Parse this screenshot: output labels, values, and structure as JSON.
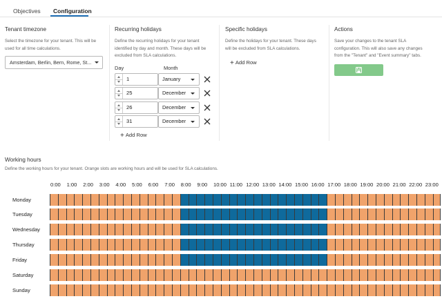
{
  "tabs": [
    {
      "label": "Objectives",
      "active": false
    },
    {
      "label": "Configuration",
      "active": true
    }
  ],
  "timezone": {
    "title": "Tenant timezone",
    "description": [
      "Select the timezone for your tenant. This will be",
      "used for all time calculations."
    ],
    "selected": "Amsterdam, Berlin, Bern, Rome, St..."
  },
  "recurring": {
    "title": "Recurring holidays",
    "description": [
      "Define the recurring holidays for your tenant",
      "identified by day and month. These days will be",
      "excluded from SLA calculations."
    ],
    "day_header": "Day",
    "month_header": "Month",
    "rows": [
      {
        "day": "1",
        "month": "January"
      },
      {
        "day": "25",
        "month": "December"
      },
      {
        "day": "26",
        "month": "December"
      },
      {
        "day": "31",
        "month": "December"
      }
    ],
    "add_row": "Add Row"
  },
  "specific": {
    "title": "Specific holidays",
    "description": [
      "Define the holidays for your tenant. These days",
      "will be excluded from SLA calculations."
    ],
    "add_row": "Add Row"
  },
  "actions": {
    "title": "Actions",
    "description": [
      "Save your changes to the tenant SLA",
      "configuration. This will also save any changes",
      "from the \"Tenant\" and \"Event summary\" tabs."
    ]
  },
  "working_hours": {
    "title": "Working hours",
    "description": "Define the working hours for your tenant. Orange slots are working hours and will be used for SLA calculations.",
    "hours": [
      "0:00",
      "1:00",
      "2:00",
      "3:00",
      "4:00",
      "5:00",
      "6:00",
      "7:00",
      "8:00",
      "9:00",
      "10:00",
      "11:00",
      "12:00",
      "13:00",
      "14:00",
      "15:00",
      "16:00",
      "17:00",
      "18:00",
      "19:00",
      "20:00",
      "21:00",
      "22:00",
      "23:00"
    ],
    "days": [
      {
        "name": "Monday",
        "blue_start_slot": 16,
        "blue_end_slot": 34
      },
      {
        "name": "Tuesday",
        "blue_start_slot": 16,
        "blue_end_slot": 34
      },
      {
        "name": "Wednesday",
        "blue_start_slot": 16,
        "blue_end_slot": 34
      },
      {
        "name": "Thursday",
        "blue_start_slot": 16,
        "blue_end_slot": 34
      },
      {
        "name": "Friday",
        "blue_start_slot": 16,
        "blue_end_slot": 34
      },
      {
        "name": "Saturday",
        "blue_start_slot": -1,
        "blue_end_slot": -1
      },
      {
        "name": "Sunday",
        "blue_start_slot": -1,
        "blue_end_slot": -1
      }
    ],
    "slots_per_day": 48,
    "colors": {
      "orange": "#f0a36b",
      "blue": "#0f6a9c"
    }
  },
  "colors": {
    "accent": "#1f6fb5",
    "save_button": "#83c98a"
  }
}
